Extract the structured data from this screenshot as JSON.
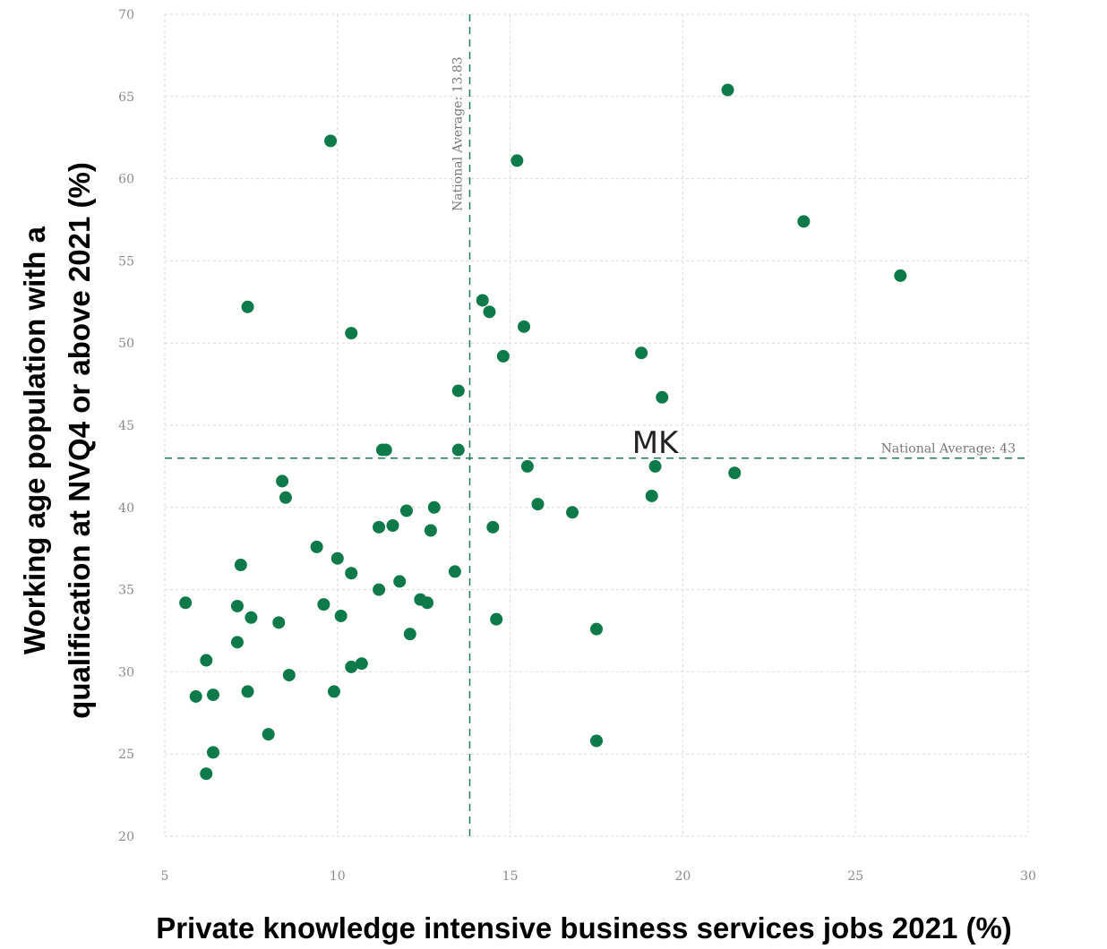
{
  "chart_data": {
    "type": "scatter",
    "xlabel": "Private knowledge intensive business services jobs 2021 (%)",
    "ylabel_lines": [
      "Working age population with a",
      "qualification at NVQ4 or above 2021 (%)"
    ],
    "xlim": [
      5,
      30
    ],
    "ylim": [
      20,
      70
    ],
    "x_ticks": [
      "5",
      "10",
      "15",
      "20",
      "25",
      "30"
    ],
    "y_ticks": [
      "20",
      "25",
      "30",
      "35",
      "40",
      "45",
      "50",
      "55",
      "60",
      "65",
      "70"
    ],
    "grid": true,
    "marker_color": "#0e7a4a",
    "reference_lines": {
      "vertical": {
        "value": 13.83,
        "label": "National Average: 13.83"
      },
      "horizontal": {
        "value": 43,
        "label": "National Average: 43"
      }
    },
    "annotations": [
      {
        "text": "MK",
        "x": 19.2,
        "y": 43.3
      }
    ],
    "points": [
      {
        "x": 21.3,
        "y": 65.4
      },
      {
        "x": 9.8,
        "y": 62.3
      },
      {
        "x": 15.2,
        "y": 61.1
      },
      {
        "x": 23.5,
        "y": 57.4
      },
      {
        "x": 26.3,
        "y": 54.1
      },
      {
        "x": 14.2,
        "y": 52.6
      },
      {
        "x": 14.4,
        "y": 51.9
      },
      {
        "x": 7.4,
        "y": 52.2
      },
      {
        "x": 15.4,
        "y": 51.0
      },
      {
        "x": 10.4,
        "y": 50.6
      },
      {
        "x": 14.8,
        "y": 49.2
      },
      {
        "x": 18.8,
        "y": 49.4
      },
      {
        "x": 13.5,
        "y": 47.1
      },
      {
        "x": 19.4,
        "y": 46.7
      },
      {
        "x": 11.3,
        "y": 43.5
      },
      {
        "x": 11.4,
        "y": 43.5
      },
      {
        "x": 13.5,
        "y": 43.5
      },
      {
        "x": 15.5,
        "y": 42.5
      },
      {
        "x": 19.2,
        "y": 42.5
      },
      {
        "x": 21.5,
        "y": 42.1
      },
      {
        "x": 8.4,
        "y": 41.6
      },
      {
        "x": 8.5,
        "y": 40.6
      },
      {
        "x": 19.1,
        "y": 40.7
      },
      {
        "x": 15.8,
        "y": 40.2
      },
      {
        "x": 12.8,
        "y": 40.0
      },
      {
        "x": 12.0,
        "y": 39.8
      },
      {
        "x": 16.8,
        "y": 39.7
      },
      {
        "x": 11.2,
        "y": 38.8
      },
      {
        "x": 11.6,
        "y": 38.9
      },
      {
        "x": 12.7,
        "y": 38.6
      },
      {
        "x": 14.5,
        "y": 38.8
      },
      {
        "x": 9.4,
        "y": 37.6
      },
      {
        "x": 10.0,
        "y": 36.9
      },
      {
        "x": 7.2,
        "y": 36.5
      },
      {
        "x": 10.4,
        "y": 36.0
      },
      {
        "x": 13.4,
        "y": 36.1
      },
      {
        "x": 11.8,
        "y": 35.5
      },
      {
        "x": 11.2,
        "y": 35.0
      },
      {
        "x": 5.6,
        "y": 34.2
      },
      {
        "x": 9.6,
        "y": 34.1
      },
      {
        "x": 12.4,
        "y": 34.4
      },
      {
        "x": 12.6,
        "y": 34.2
      },
      {
        "x": 7.1,
        "y": 34.0
      },
      {
        "x": 7.5,
        "y": 33.3
      },
      {
        "x": 10.1,
        "y": 33.4
      },
      {
        "x": 8.3,
        "y": 33.0
      },
      {
        "x": 14.6,
        "y": 33.2
      },
      {
        "x": 17.5,
        "y": 32.6
      },
      {
        "x": 12.1,
        "y": 32.3
      },
      {
        "x": 7.1,
        "y": 31.8
      },
      {
        "x": 6.2,
        "y": 30.7
      },
      {
        "x": 10.4,
        "y": 30.3
      },
      {
        "x": 10.7,
        "y": 30.5
      },
      {
        "x": 8.6,
        "y": 29.8
      },
      {
        "x": 5.9,
        "y": 28.5
      },
      {
        "x": 6.4,
        "y": 28.6
      },
      {
        "x": 7.4,
        "y": 28.8
      },
      {
        "x": 9.9,
        "y": 28.8
      },
      {
        "x": 8.0,
        "y": 26.2
      },
      {
        "x": 17.5,
        "y": 25.8
      },
      {
        "x": 6.4,
        "y": 25.1
      },
      {
        "x": 6.2,
        "y": 23.8
      }
    ]
  }
}
